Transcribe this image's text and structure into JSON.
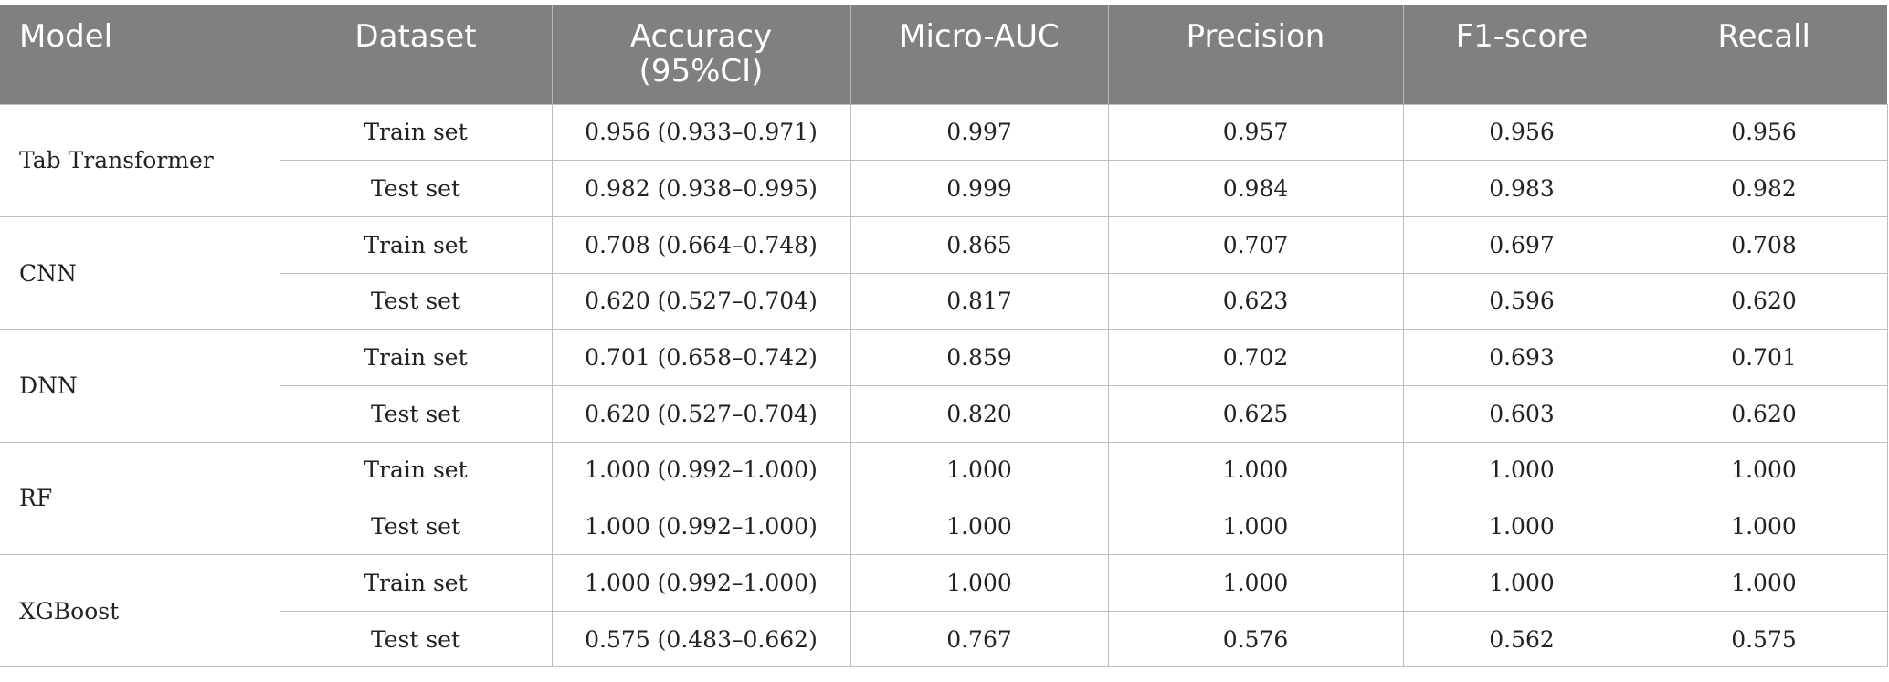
{
  "table": {
    "headers": [
      "Model",
      "Dataset",
      "Accuracy\n(95%CI)",
      "Micro-AUC",
      "Precision",
      "F1-score",
      "Recall"
    ],
    "groups": [
      {
        "model": "Tab Transformer",
        "rows": [
          {
            "dataset": "Train set",
            "accuracy": "0.956 (0.933–0.971)",
            "micro_auc": "0.997",
            "precision": "0.957",
            "f1": "0.956",
            "recall": "0.956"
          },
          {
            "dataset": "Test set",
            "accuracy": "0.982 (0.938–0.995)",
            "micro_auc": "0.999",
            "precision": "0.984",
            "f1": "0.983",
            "recall": "0.982"
          }
        ]
      },
      {
        "model": "CNN",
        "rows": [
          {
            "dataset": "Train set",
            "accuracy": "0.708 (0.664–0.748)",
            "micro_auc": "0.865",
            "precision": "0.707",
            "f1": "0.697",
            "recall": "0.708"
          },
          {
            "dataset": "Test set",
            "accuracy": "0.620 (0.527–0.704)",
            "micro_auc": "0.817",
            "precision": "0.623",
            "f1": "0.596",
            "recall": "0.620"
          }
        ]
      },
      {
        "model": "DNN",
        "rows": [
          {
            "dataset": "Train set",
            "accuracy": "0.701 (0.658–0.742)",
            "micro_auc": "0.859",
            "precision": "0.702",
            "f1": "0.693",
            "recall": "0.701"
          },
          {
            "dataset": "Test set",
            "accuracy": "0.620 (0.527–0.704)",
            "micro_auc": "0.820",
            "precision": "0.625",
            "f1": "0.603",
            "recall": "0.620"
          }
        ]
      },
      {
        "model": "RF",
        "rows": [
          {
            "dataset": "Train set",
            "accuracy": "1.000 (0.992–1.000)",
            "micro_auc": "1.000",
            "precision": "1.000",
            "f1": "1.000",
            "recall": "1.000"
          },
          {
            "dataset": "Test set",
            "accuracy": "1.000 (0.992–1.000)",
            "micro_auc": "1.000",
            "precision": "1.000",
            "f1": "1.000",
            "recall": "1.000"
          }
        ]
      },
      {
        "model": "XGBoost",
        "rows": [
          {
            "dataset": "Train set",
            "accuracy": "1.000 (0.992–1.000)",
            "micro_auc": "1.000",
            "precision": "1.000",
            "f1": "1.000",
            "recall": "1.000"
          },
          {
            "dataset": "Test set",
            "accuracy": "0.575 (0.483–0.662)",
            "micro_auc": "0.767",
            "precision": "0.576",
            "f1": "0.562",
            "recall": "0.575"
          }
        ]
      }
    ]
  }
}
